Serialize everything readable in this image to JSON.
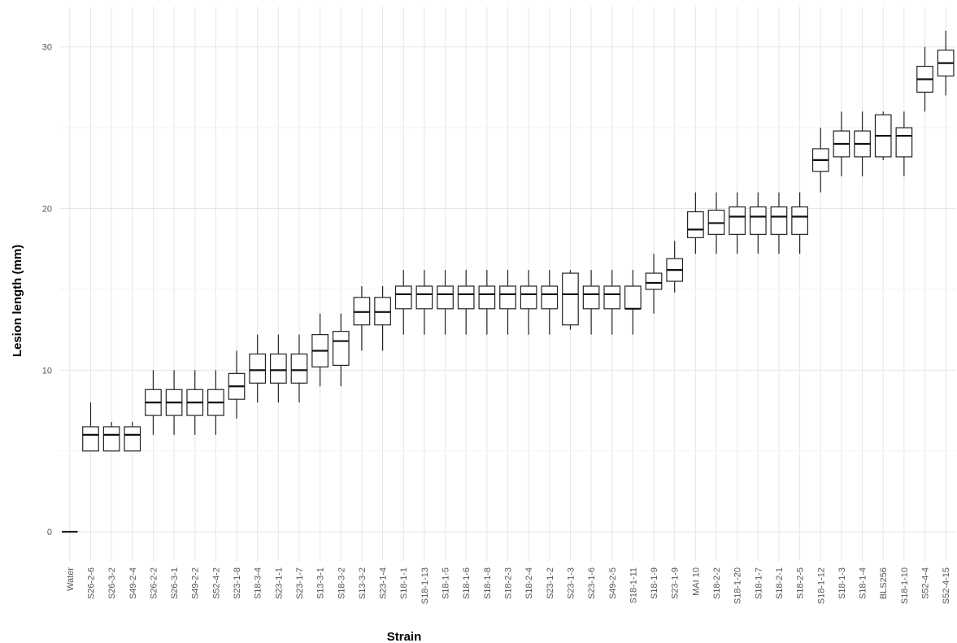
{
  "chart_data": {
    "type": "boxplot",
    "xlabel": "Strain",
    "ylabel": "Lesion length (mm)",
    "ylim": [
      -1.8,
      32.5
    ],
    "yticks": [
      0,
      10,
      20,
      30
    ],
    "grid": true,
    "categories": [
      "Water",
      "S26-2-6",
      "S26-3-2",
      "S49-2-4",
      "S26-2-2",
      "S26-3-1",
      "S49-2-2",
      "S52-4-2",
      "S23-1-8",
      "S18-3-4",
      "S23-1-1",
      "S23-1-7",
      "S13-3-1",
      "S18-3-2",
      "S13-3-2",
      "S23-1-4",
      "S18-1-1",
      "S18-1-13",
      "S18-1-5",
      "S18-1-6",
      "S18-1-8",
      "S18-2-3",
      "S18-2-4",
      "S23-1-2",
      "S23-1-3",
      "S23-1-6",
      "S49-2-5",
      "S18-1-11",
      "S18-1-9",
      "S23-1-9",
      "MAI 10",
      "S18-2-2",
      "S18-1-20",
      "S18-1-7",
      "S18-2-1",
      "S18-2-5",
      "S18-1-12",
      "S18-1-3",
      "S18-1-4",
      "BLS256",
      "S18-1-10",
      "S52-4-4",
      "S52-4-15"
    ],
    "boxes": [
      {
        "min": 0,
        "q1": 0,
        "median": 0,
        "q3": 0,
        "max": 0
      },
      {
        "min": 5,
        "q1": 5,
        "median": 6,
        "q3": 6.5,
        "max": 8
      },
      {
        "min": 5,
        "q1": 5,
        "median": 6,
        "q3": 6.5,
        "max": 6.8
      },
      {
        "min": 5,
        "q1": 5,
        "median": 6,
        "q3": 6.5,
        "max": 6.8
      },
      {
        "min": 6,
        "q1": 7.2,
        "median": 8,
        "q3": 8.8,
        "max": 10
      },
      {
        "min": 6,
        "q1": 7.2,
        "median": 8,
        "q3": 8.8,
        "max": 10
      },
      {
        "min": 6,
        "q1": 7.2,
        "median": 8,
        "q3": 8.8,
        "max": 10
      },
      {
        "min": 6,
        "q1": 7.2,
        "median": 8,
        "q3": 8.8,
        "max": 10
      },
      {
        "min": 7,
        "q1": 8.2,
        "median": 9,
        "q3": 9.8,
        "max": 11.2
      },
      {
        "min": 8,
        "q1": 9.2,
        "median": 10,
        "q3": 11,
        "max": 12.2
      },
      {
        "min": 8,
        "q1": 9.2,
        "median": 10,
        "q3": 11,
        "max": 12.2
      },
      {
        "min": 8,
        "q1": 9.2,
        "median": 10,
        "q3": 11,
        "max": 12.2
      },
      {
        "min": 9,
        "q1": 10.2,
        "median": 11.2,
        "q3": 12.2,
        "max": 13.5
      },
      {
        "min": 9,
        "q1": 10.3,
        "median": 11.8,
        "q3": 12.4,
        "max": 13.5
      },
      {
        "min": 11.2,
        "q1": 12.8,
        "median": 13.6,
        "q3": 14.5,
        "max": 15.2
      },
      {
        "min": 11.2,
        "q1": 12.8,
        "median": 13.6,
        "q3": 14.5,
        "max": 15.2
      },
      {
        "min": 12.2,
        "q1": 13.8,
        "median": 14.7,
        "q3": 15.2,
        "max": 16.2
      },
      {
        "min": 12.2,
        "q1": 13.8,
        "median": 14.7,
        "q3": 15.2,
        "max": 16.2
      },
      {
        "min": 12.2,
        "q1": 13.8,
        "median": 14.7,
        "q3": 15.2,
        "max": 16.2
      },
      {
        "min": 12.2,
        "q1": 13.8,
        "median": 14.7,
        "q3": 15.2,
        "max": 16.2
      },
      {
        "min": 12.2,
        "q1": 13.8,
        "median": 14.7,
        "q3": 15.2,
        "max": 16.2
      },
      {
        "min": 12.2,
        "q1": 13.8,
        "median": 14.7,
        "q3": 15.2,
        "max": 16.2
      },
      {
        "min": 12.2,
        "q1": 13.8,
        "median": 14.7,
        "q3": 15.2,
        "max": 16.2
      },
      {
        "min": 12.2,
        "q1": 13.8,
        "median": 14.7,
        "q3": 15.2,
        "max": 16.2
      },
      {
        "min": 12.5,
        "q1": 12.8,
        "median": 14.7,
        "q3": 16,
        "max": 16.2
      },
      {
        "min": 12.2,
        "q1": 13.8,
        "median": 14.7,
        "q3": 15.2,
        "max": 16.2
      },
      {
        "min": 12.2,
        "q1": 13.8,
        "median": 14.7,
        "q3": 15.2,
        "max": 16.2
      },
      {
        "min": 12.2,
        "q1": 13.8,
        "median": 13.8,
        "q3": 15.2,
        "max": 16.2
      },
      {
        "min": 13.5,
        "q1": 15,
        "median": 15.4,
        "q3": 16,
        "max": 17.2
      },
      {
        "min": 14.8,
        "q1": 15.5,
        "median": 16.2,
        "q3": 16.9,
        "max": 18
      },
      {
        "min": 17.2,
        "q1": 18.2,
        "median": 18.7,
        "q3": 19.8,
        "max": 21
      },
      {
        "min": 17.2,
        "q1": 18.4,
        "median": 19.1,
        "q3": 19.9,
        "max": 21
      },
      {
        "min": 17.2,
        "q1": 18.4,
        "median": 19.5,
        "q3": 20.1,
        "max": 21
      },
      {
        "min": 17.2,
        "q1": 18.4,
        "median": 19.5,
        "q3": 20.1,
        "max": 21
      },
      {
        "min": 17.2,
        "q1": 18.4,
        "median": 19.5,
        "q3": 20.1,
        "max": 21
      },
      {
        "min": 17.2,
        "q1": 18.4,
        "median": 19.5,
        "q3": 20.1,
        "max": 21
      },
      {
        "min": 21,
        "q1": 22.3,
        "median": 23,
        "q3": 23.7,
        "max": 25
      },
      {
        "min": 22,
        "q1": 23.2,
        "median": 24,
        "q3": 24.8,
        "max": 26
      },
      {
        "min": 22,
        "q1": 23.2,
        "median": 24,
        "q3": 24.8,
        "max": 26
      },
      {
        "min": 23,
        "q1": 23.2,
        "median": 24.5,
        "q3": 25.8,
        "max": 26
      },
      {
        "min": 22,
        "q1": 23.2,
        "median": 24.5,
        "q3": 25,
        "max": 26
      },
      {
        "min": 26,
        "q1": 27.2,
        "median": 28,
        "q3": 28.8,
        "max": 30
      },
      {
        "min": 27,
        "q1": 28.2,
        "median": 29,
        "q3": 29.8,
        "max": 31
      }
    ]
  }
}
